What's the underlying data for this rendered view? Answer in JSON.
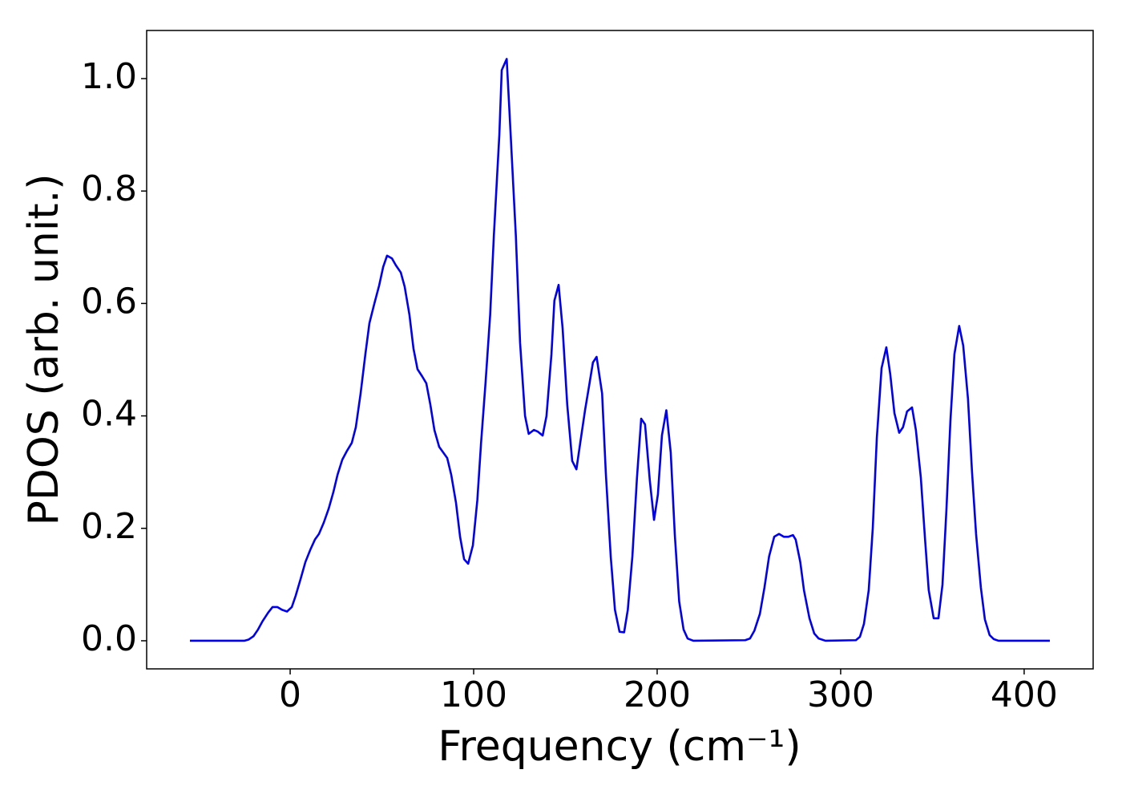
{
  "chart_data": {
    "type": "line",
    "xlabel": "Frequency (cm⁻¹)",
    "ylabel": "PDOS (arb. unit.)",
    "xlim": [
      -78.2,
      437.6
    ],
    "ylim": [
      -0.05,
      1.0856
    ],
    "xticks": [
      0,
      100,
      200,
      300,
      400
    ],
    "yticks": [
      {
        "value": 0,
        "label": "0.0"
      },
      0.2,
      0.4,
      0.6,
      0.8,
      {
        "value": 1,
        "label": "1.0"
      }
    ],
    "x": [
      -54.6,
      -25,
      -22.7,
      -20,
      -17.5,
      -15,
      -12,
      -9.6,
      -7,
      -4.4,
      -1.7,
      0.9,
      3,
      5.7,
      8.3,
      11,
      13.5,
      15.7,
      18.3,
      21,
      23.6,
      25.8,
      28.4,
      31,
      33.6,
      35.8,
      38.4,
      41,
      43.2,
      45.9,
      48.5,
      50.7,
      52.8,
      55.5,
      57.6,
      60.3,
      62.4,
      65,
      67.2,
      69.4,
      72,
      74.2,
      76.4,
      78.6,
      81.2,
      83.4,
      85.6,
      87.8,
      90.4,
      92.6,
      94.8,
      97,
      99.6,
      102,
      104,
      106.5,
      109,
      111,
      114,
      115.3,
      118,
      119.7,
      123,
      125.3,
      128,
      130,
      132.8,
      135,
      137.6,
      139.7,
      142.4,
      144,
      146.3,
      148.5,
      151,
      153.7,
      156,
      158,
      160.7,
      163,
      165,
      167,
      170,
      172,
      174.7,
      177,
      179.5,
      182,
      184,
      186.5,
      189,
      191.3,
      193.4,
      196,
      198.3,
      200.4,
      202.6,
      205,
      207.4,
      209.6,
      212,
      214.4,
      216.6,
      219.7,
      248,
      250.6,
      253,
      256,
      258.5,
      261,
      263.8,
      266.4,
      269,
      271.6,
      274,
      275.5,
      278,
      280,
      283,
      285.6,
      288,
      291.7,
      308.3,
      310.5,
      312.7,
      315.3,
      317.5,
      319.7,
      322.3,
      324.9,
      327,
      329.3,
      331.9,
      334,
      336.2,
      338.9,
      341,
      343.7,
      345.9,
      348,
      350.7,
      353.3,
      355.5,
      357.6,
      359.8,
      362,
      364.6,
      366.8,
      369.4,
      371.6,
      373.8,
      376.4,
      378.6,
      381.2,
      383.4,
      386,
      414
    ],
    "series": [
      {
        "name": "PDOS",
        "color": "#0000ee",
        "values": [
          0,
          0,
          0.002,
          0.008,
          0.02,
          0.035,
          0.05,
          0.06,
          0.06,
          0.055,
          0.052,
          0.06,
          0.08,
          0.11,
          0.14,
          0.162,
          0.18,
          0.19,
          0.21,
          0.235,
          0.265,
          0.295,
          0.322,
          0.338,
          0.352,
          0.38,
          0.44,
          0.51,
          0.565,
          0.6,
          0.632,
          0.665,
          0.685,
          0.68,
          0.668,
          0.655,
          0.63,
          0.58,
          0.52,
          0.483,
          0.47,
          0.458,
          0.42,
          0.375,
          0.345,
          0.335,
          0.325,
          0.295,
          0.245,
          0.185,
          0.145,
          0.137,
          0.17,
          0.25,
          0.35,
          0.46,
          0.58,
          0.72,
          0.9,
          1.015,
          1.035,
          0.93,
          0.72,
          0.53,
          0.4,
          0.368,
          0.375,
          0.372,
          0.365,
          0.4,
          0.51,
          0.605,
          0.633,
          0.555,
          0.42,
          0.32,
          0.305,
          0.35,
          0.41,
          0.455,
          0.495,
          0.505,
          0.44,
          0.3,
          0.15,
          0.055,
          0.016,
          0.015,
          0.055,
          0.15,
          0.29,
          0.395,
          0.385,
          0.285,
          0.215,
          0.26,
          0.365,
          0.41,
          0.335,
          0.19,
          0.07,
          0.02,
          0.004,
          0,
          0.001,
          0.004,
          0.018,
          0.048,
          0.095,
          0.15,
          0.185,
          0.19,
          0.185,
          0.185,
          0.188,
          0.18,
          0.14,
          0.09,
          0.04,
          0.013,
          0.004,
          0,
          0.001,
          0.007,
          0.03,
          0.09,
          0.2,
          0.36,
          0.485,
          0.522,
          0.475,
          0.405,
          0.37,
          0.38,
          0.408,
          0.415,
          0.375,
          0.29,
          0.185,
          0.09,
          0.04,
          0.04,
          0.1,
          0.23,
          0.39,
          0.51,
          0.56,
          0.525,
          0.43,
          0.3,
          0.19,
          0.095,
          0.038,
          0.01,
          0.003,
          0,
          0
        ]
      }
    ]
  }
}
